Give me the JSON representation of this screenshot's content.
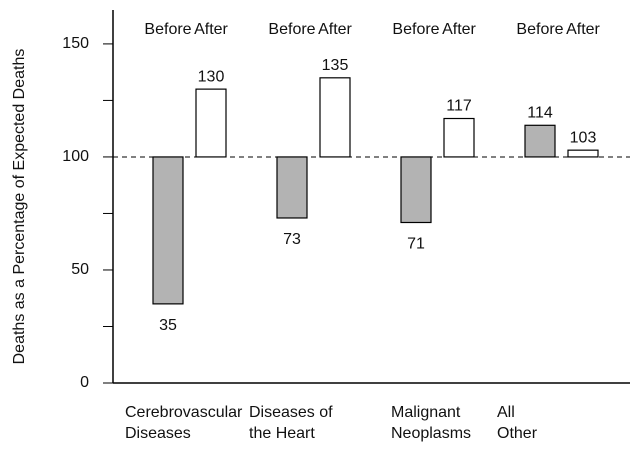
{
  "chart_data": {
    "type": "bar",
    "y_label": "Deaths as a Percentage of Expected Deaths",
    "categories": [
      [
        "Cerebrovascular",
        "Diseases"
      ],
      [
        "Diseases of",
        "the Heart"
      ],
      [
        "Malignant",
        "Neoplasms"
      ],
      [
        "All",
        "Other"
      ]
    ],
    "series": [
      {
        "name": "Before",
        "color": "#b3b3b3",
        "values": [
          35,
          73,
          71,
          114
        ]
      },
      {
        "name": "After",
        "color": "#ffffff",
        "values": [
          130,
          135,
          117,
          103
        ]
      }
    ],
    "baseline": 100,
    "ylim": [
      0,
      165
    ],
    "yticks": [
      0,
      50,
      100,
      150
    ],
    "minor_yticks": [
      25,
      75,
      125
    ]
  }
}
